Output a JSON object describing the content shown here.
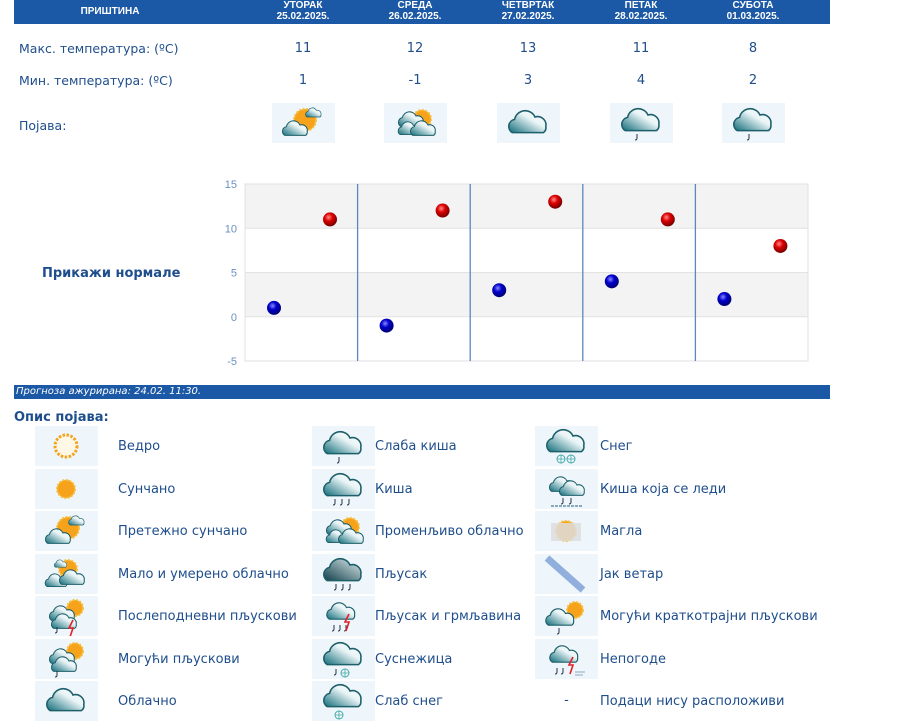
{
  "header": {
    "city": "ПРИШТИНА",
    "days": [
      {
        "day": "УТОРАК",
        "date": "25.02.2025."
      },
      {
        "day": "СРЕДА",
        "date": "26.02.2025."
      },
      {
        "day": "ЧЕТВРТАК",
        "date": "27.02.2025."
      },
      {
        "day": "ПЕТАК",
        "date": "28.02.2025."
      },
      {
        "day": "СУБОТА",
        "date": "01.03.2025."
      }
    ]
  },
  "rows": {
    "max_label": "Макс. температура: (ºC)",
    "min_label": "Мин. температура: (ºC)",
    "icon_label": "Појава:",
    "max": [
      "11",
      "12",
      "13",
      "11",
      "8"
    ],
    "min": [
      "1",
      "-1",
      "3",
      "4",
      "2"
    ],
    "icons": [
      "mostly-sunny-icon",
      "partly-cloudy-icon",
      "cloudy-icon",
      "light-rain-icon",
      "light-rain-icon"
    ]
  },
  "show_normals": "Прикажи нормале",
  "chart_data": {
    "type": "scatter",
    "ylim": [
      -5,
      15
    ],
    "yticks": [
      "15",
      "10",
      "5",
      "0",
      "-5"
    ],
    "categories": [
      "25.02.2025.",
      "26.02.2025.",
      "27.02.2025.",
      "28.02.2025.",
      "01.03.2025."
    ],
    "series": [
      {
        "values": [
          11,
          12,
          13,
          11,
          8
        ],
        "color": "#cc0000"
      },
      {
        "values": [
          1,
          -1,
          3,
          4,
          2
        ],
        "color": "#0000cc"
      }
    ],
    "grid": true
  },
  "updated": "Прогноза ажурирана:  24.02. 11:30.",
  "legend_title": "Опис појава:",
  "legend": [
    [
      {
        "icon": "clear-sun-icon",
        "label": "Ведро"
      },
      {
        "icon": "light-rain-icon",
        "label": "Слаба киша"
      },
      {
        "icon": "snow-icon",
        "label": "Снег"
      }
    ],
    [
      {
        "icon": "sunny-icon",
        "label": "Сунчано"
      },
      {
        "icon": "rain-icon",
        "label": "Киша"
      },
      {
        "icon": "freezing-rain-icon",
        "label": "Киша која се леди"
      }
    ],
    [
      {
        "icon": "mostly-sunny-icon",
        "label": "Претежно сунчано"
      },
      {
        "icon": "partly-cloudy-icon",
        "label": "Променљиво облачно"
      },
      {
        "icon": "fog-icon",
        "label": "Магла"
      }
    ],
    [
      {
        "icon": "few-clouds-icon",
        "label": "Мало и умерено облачно"
      },
      {
        "icon": "shower-icon",
        "label": "Пљусак"
      },
      {
        "icon": "strong-wind-icon",
        "label": "Јак ветар"
      }
    ],
    [
      {
        "icon": "afternoon-showers-icon",
        "label": "Послеподневни пљускови"
      },
      {
        "icon": "thunderstorm-icon",
        "label": "Пљусак и грмљавина"
      },
      {
        "icon": "brief-showers-icon",
        "label": "Могући краткотрајни пљускови"
      }
    ],
    [
      {
        "icon": "possible-showers-icon",
        "label": "Могући пљускови"
      },
      {
        "icon": "sleet-icon",
        "label": "Суснежица"
      },
      {
        "icon": "storm-icon",
        "label": "Непогоде"
      }
    ],
    [
      {
        "icon": "cloudy-icon",
        "label": "Облачно"
      },
      {
        "icon": "light-snow-icon",
        "label": "Слаб снег"
      },
      {
        "icon": "",
        "label": "Подаци нису расположиви",
        "dash": "-"
      }
    ]
  ],
  "colors": {
    "header": "#1b58a5",
    "text": "#1f4e8c",
    "max": "#cc0000",
    "min": "#0000cc"
  }
}
